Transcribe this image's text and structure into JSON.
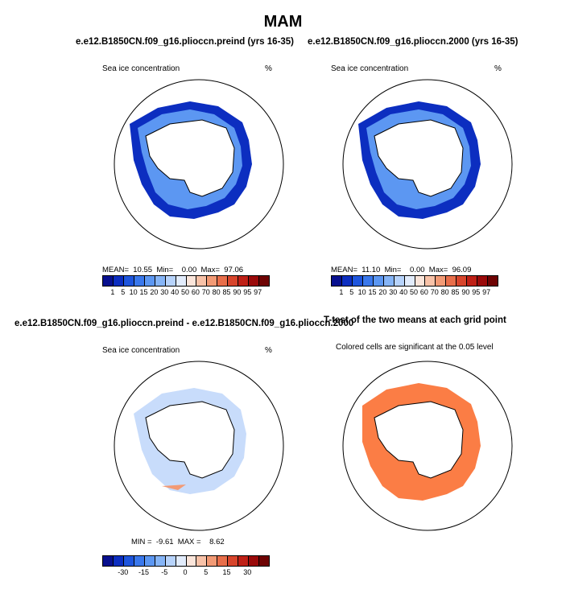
{
  "figure": {
    "title": "MAM",
    "panels": [
      {
        "title": "e.e12.B1850CN.f09_g16.plioccn.preind (yrs 16-35)",
        "left_label": "Sea ice concentration",
        "right_label": "%",
        "stats": "MEAN=  10.55  Min=    0.00  Max=  97.06"
      },
      {
        "title": "e.e12.B1850CN.f09_g16.plioccn.2000 (yrs 16-35)",
        "left_label": "Sea ice concentration",
        "right_label": "%",
        "stats": "MEAN=  11.10  Min=    0.00  Max=  96.09"
      },
      {
        "title": "e.e12.B1850CN.f09_g16.plioccn.preind - e.e12.B1850CN.f09_g16.plioccn.2000",
        "left_label": "Sea ice concentration",
        "right_label": "%",
        "stats": "MIN =  -9.61  MAX =    8.62"
      },
      {
        "title": "T-test of the two means at each grid point",
        "left_label": "Colored cells are significant at the 0.05 level",
        "right_label": "",
        "stats": ""
      }
    ],
    "colorbar_abs": {
      "labels": [
        "1",
        "5",
        "10",
        "15",
        "20",
        "30",
        "40",
        "50",
        "60",
        "70",
        "80",
        "85",
        "90",
        "95",
        "97"
      ],
      "colors": [
        "#08108f",
        "#0c2ec0",
        "#1e55dd",
        "#3a78ec",
        "#5c97f2",
        "#86b5f7",
        "#b7d3fb",
        "#e2ecfc",
        "#fbe5da",
        "#f8c2a8",
        "#f29a75",
        "#e86e4a",
        "#d8452c",
        "#bf2016",
        "#9a0a0a",
        "#6e0303"
      ]
    },
    "colorbar_diff": {
      "labels": [
        "-30",
        "-15",
        "-5",
        "0",
        "5",
        "15",
        "30"
      ],
      "colors": [
        "#08108f",
        "#0c2ec0",
        "#1e55dd",
        "#3a78ec",
        "#5c97f2",
        "#86b5f7",
        "#b7d3fb",
        "#e2ecfc",
        "#fbe5da",
        "#f8c2a8",
        "#f29a75",
        "#e86e4a",
        "#d8452c",
        "#bf2016",
        "#9a0a0a",
        "#6e0303"
      ]
    },
    "significance_color": "#fb7d45",
    "ice_edge_color": "#1436c8",
    "weddell_color": "#e8542c"
  }
}
